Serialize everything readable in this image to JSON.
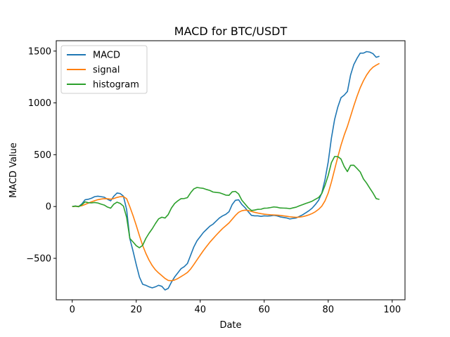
{
  "chart_data": {
    "type": "line",
    "title": "MACD for BTC/USDT",
    "xlabel": "Date",
    "ylabel": "MACD Value",
    "xlim": [
      -5,
      104
    ],
    "ylim": [
      -900,
      1600
    ],
    "xticks": [
      0,
      20,
      40,
      60,
      80,
      100
    ],
    "yticks": [
      -500,
      0,
      500,
      1000,
      1500
    ],
    "ytick_labels": [
      "−500",
      "0",
      "500",
      "1000",
      "1500"
    ],
    "grid": false,
    "legend": "top-left",
    "series": [
      {
        "name": "MACD",
        "color": "#1f77b4",
        "points": [
          [
            0,
            0
          ],
          [
            1,
            5
          ],
          [
            2,
            0
          ],
          [
            3,
            25
          ],
          [
            4,
            65
          ],
          [
            5,
            70
          ],
          [
            6,
            80
          ],
          [
            7,
            95
          ],
          [
            8,
            100
          ],
          [
            9,
            95
          ],
          [
            10,
            90
          ],
          [
            11,
            70
          ],
          [
            12,
            55
          ],
          [
            13,
            100
          ],
          [
            14,
            130
          ],
          [
            15,
            125
          ],
          [
            16,
            100
          ],
          [
            17,
            -30
          ],
          [
            18,
            -310
          ],
          [
            19,
            -430
          ],
          [
            20,
            -560
          ],
          [
            21,
            -680
          ],
          [
            22,
            -750
          ],
          [
            23,
            -760
          ],
          [
            24,
            -775
          ],
          [
            25,
            -785
          ],
          [
            26,
            -775
          ],
          [
            27,
            -760
          ],
          [
            28,
            -770
          ],
          [
            29,
            -805
          ],
          [
            30,
            -790
          ],
          [
            31,
            -730
          ],
          [
            32,
            -680
          ],
          [
            33,
            -640
          ],
          [
            34,
            -600
          ],
          [
            35,
            -580
          ],
          [
            36,
            -550
          ],
          [
            37,
            -470
          ],
          [
            38,
            -390
          ],
          [
            39,
            -330
          ],
          [
            40,
            -290
          ],
          [
            41,
            -250
          ],
          [
            42,
            -220
          ],
          [
            43,
            -190
          ],
          [
            44,
            -170
          ],
          [
            45,
            -140
          ],
          [
            46,
            -110
          ],
          [
            47,
            -90
          ],
          [
            48,
            -75
          ],
          [
            49,
            -50
          ],
          [
            50,
            20
          ],
          [
            51,
            60
          ],
          [
            52,
            65
          ],
          [
            53,
            20
          ],
          [
            54,
            -10
          ],
          [
            55,
            -50
          ],
          [
            56,
            -85
          ],
          [
            57,
            -90
          ],
          [
            58,
            -90
          ],
          [
            59,
            -95
          ],
          [
            60,
            -90
          ],
          [
            61,
            -92
          ],
          [
            62,
            -90
          ],
          [
            63,
            -85
          ],
          [
            64,
            -90
          ],
          [
            65,
            -100
          ],
          [
            66,
            -105
          ],
          [
            67,
            -110
          ],
          [
            68,
            -120
          ],
          [
            69,
            -115
          ],
          [
            70,
            -110
          ],
          [
            71,
            -95
          ],
          [
            72,
            -80
          ],
          [
            73,
            -60
          ],
          [
            74,
            -40
          ],
          [
            75,
            -15
          ],
          [
            76,
            20
          ],
          [
            77,
            60
          ],
          [
            78,
            130
          ],
          [
            79,
            260
          ],
          [
            80,
            430
          ],
          [
            81,
            660
          ],
          [
            82,
            840
          ],
          [
            83,
            960
          ],
          [
            84,
            1050
          ],
          [
            85,
            1075
          ],
          [
            86,
            1110
          ],
          [
            87,
            1270
          ],
          [
            88,
            1370
          ],
          [
            89,
            1430
          ],
          [
            90,
            1480
          ],
          [
            91,
            1480
          ],
          [
            92,
            1495
          ],
          [
            93,
            1490
          ],
          [
            94,
            1475
          ],
          [
            95,
            1440
          ],
          [
            96,
            1450
          ]
        ]
      },
      {
        "name": "signal",
        "color": "#ff7f0e",
        "points": [
          [
            0,
            0
          ],
          [
            1,
            1
          ],
          [
            2,
            2
          ],
          [
            3,
            8
          ],
          [
            4,
            20
          ],
          [
            5,
            33
          ],
          [
            6,
            45
          ],
          [
            7,
            56
          ],
          [
            8,
            66
          ],
          [
            9,
            72
          ],
          [
            10,
            76
          ],
          [
            11,
            75
          ],
          [
            12,
            71
          ],
          [
            13,
            77
          ],
          [
            14,
            88
          ],
          [
            15,
            95
          ],
          [
            16,
            96
          ],
          [
            17,
            75
          ],
          [
            18,
            -2
          ],
          [
            19,
            -88
          ],
          [
            20,
            -182
          ],
          [
            21,
            -282
          ],
          [
            22,
            -375
          ],
          [
            23,
            -452
          ],
          [
            24,
            -517
          ],
          [
            25,
            -570
          ],
          [
            26,
            -611
          ],
          [
            27,
            -641
          ],
          [
            28,
            -667
          ],
          [
            29,
            -694
          ],
          [
            30,
            -713
          ],
          [
            31,
            -716
          ],
          [
            32,
            -709
          ],
          [
            33,
            -695
          ],
          [
            34,
            -676
          ],
          [
            35,
            -657
          ],
          [
            36,
            -636
          ],
          [
            37,
            -603
          ],
          [
            38,
            -560
          ],
          [
            39,
            -514
          ],
          [
            40,
            -469
          ],
          [
            41,
            -425
          ],
          [
            42,
            -384
          ],
          [
            43,
            -345
          ],
          [
            44,
            -310
          ],
          [
            45,
            -276
          ],
          [
            46,
            -243
          ],
          [
            47,
            -212
          ],
          [
            48,
            -185
          ],
          [
            49,
            -158
          ],
          [
            50,
            -122
          ],
          [
            51,
            -86
          ],
          [
            52,
            -56
          ],
          [
            53,
            -41
          ],
          [
            54,
            -35
          ],
          [
            55,
            -38
          ],
          [
            56,
            -47
          ],
          [
            57,
            -56
          ],
          [
            58,
            -63
          ],
          [
            59,
            -69
          ],
          [
            60,
            -74
          ],
          [
            61,
            -77
          ],
          [
            62,
            -80
          ],
          [
            63,
            -81
          ],
          [
            64,
            -83
          ],
          [
            65,
            -86
          ],
          [
            66,
            -90
          ],
          [
            67,
            -94
          ],
          [
            68,
            -99
          ],
          [
            69,
            -102
          ],
          [
            70,
            -104
          ],
          [
            71,
            -102
          ],
          [
            72,
            -98
          ],
          [
            73,
            -90
          ],
          [
            74,
            -80
          ],
          [
            75,
            -67
          ],
          [
            76,
            -50
          ],
          [
            77,
            -27
          ],
          [
            78,
            4
          ],
          [
            79,
            55
          ],
          [
            80,
            130
          ],
          [
            81,
            236
          ],
          [
            82,
            357
          ],
          [
            83,
            478
          ],
          [
            84,
            592
          ],
          [
            85,
            689
          ],
          [
            86,
            773
          ],
          [
            87,
            872
          ],
          [
            88,
            971
          ],
          [
            89,
            1063
          ],
          [
            90,
            1146
          ],
          [
            91,
            1213
          ],
          [
            92,
            1269
          ],
          [
            93,
            1313
          ],
          [
            94,
            1345
          ],
          [
            95,
            1364
          ],
          [
            96,
            1381
          ]
        ]
      },
      {
        "name": "histogram",
        "color": "#2ca02c",
        "points": [
          [
            0,
            0
          ],
          [
            1,
            4
          ],
          [
            2,
            -2
          ],
          [
            3,
            17
          ],
          [
            4,
            45
          ],
          [
            5,
            37
          ],
          [
            6,
            35
          ],
          [
            7,
            39
          ],
          [
            8,
            34
          ],
          [
            9,
            23
          ],
          [
            10,
            14
          ],
          [
            11,
            -5
          ],
          [
            12,
            -16
          ],
          [
            13,
            23
          ],
          [
            14,
            42
          ],
          [
            15,
            30
          ],
          [
            16,
            4
          ],
          [
            17,
            -105
          ],
          [
            18,
            -308
          ],
          [
            19,
            -342
          ],
          [
            20,
            -378
          ],
          [
            21,
            -398
          ],
          [
            22,
            -375
          ],
          [
            23,
            -308
          ],
          [
            24,
            -258
          ],
          [
            25,
            -215
          ],
          [
            26,
            -164
          ],
          [
            27,
            -119
          ],
          [
            28,
            -103
          ],
          [
            29,
            -111
          ],
          [
            30,
            -77
          ],
          [
            31,
            -14
          ],
          [
            32,
            29
          ],
          [
            33,
            55
          ],
          [
            34,
            76
          ],
          [
            35,
            77
          ],
          [
            36,
            86
          ],
          [
            37,
            133
          ],
          [
            38,
            170
          ],
          [
            39,
            184
          ],
          [
            40,
            179
          ],
          [
            41,
            175
          ],
          [
            42,
            164
          ],
          [
            43,
            155
          ],
          [
            44,
            140
          ],
          [
            45,
            136
          ],
          [
            46,
            133
          ],
          [
            47,
            122
          ],
          [
            48,
            110
          ],
          [
            49,
            108
          ],
          [
            50,
            142
          ],
          [
            51,
            146
          ],
          [
            52,
            121
          ],
          [
            53,
            61
          ],
          [
            54,
            25
          ],
          [
            55,
            -12
          ],
          [
            56,
            -38
          ],
          [
            57,
            -34
          ],
          [
            58,
            -27
          ],
          [
            59,
            -26
          ],
          [
            60,
            -16
          ],
          [
            61,
            -15
          ],
          [
            62,
            -10
          ],
          [
            63,
            -4
          ],
          [
            64,
            -7
          ],
          [
            65,
            -14
          ],
          [
            66,
            -15
          ],
          [
            67,
            -16
          ],
          [
            68,
            -21
          ],
          [
            69,
            -13
          ],
          [
            70,
            -6
          ],
          [
            71,
            7
          ],
          [
            72,
            18
          ],
          [
            73,
            30
          ],
          [
            74,
            40
          ],
          [
            75,
            52
          ],
          [
            76,
            70
          ],
          [
            77,
            87
          ],
          [
            78,
            126
          ],
          [
            79,
            205
          ],
          [
            80,
            300
          ],
          [
            81,
            424
          ],
          [
            82,
            483
          ],
          [
            83,
            482
          ],
          [
            84,
            458
          ],
          [
            85,
            386
          ],
          [
            86,
            337
          ],
          [
            87,
            398
          ],
          [
            88,
            399
          ],
          [
            89,
            367
          ],
          [
            90,
            334
          ],
          [
            91,
            267
          ],
          [
            92,
            226
          ],
          [
            93,
            177
          ],
          [
            94,
            130
          ],
          [
            95,
            76
          ],
          [
            96,
            69
          ]
        ]
      }
    ]
  }
}
